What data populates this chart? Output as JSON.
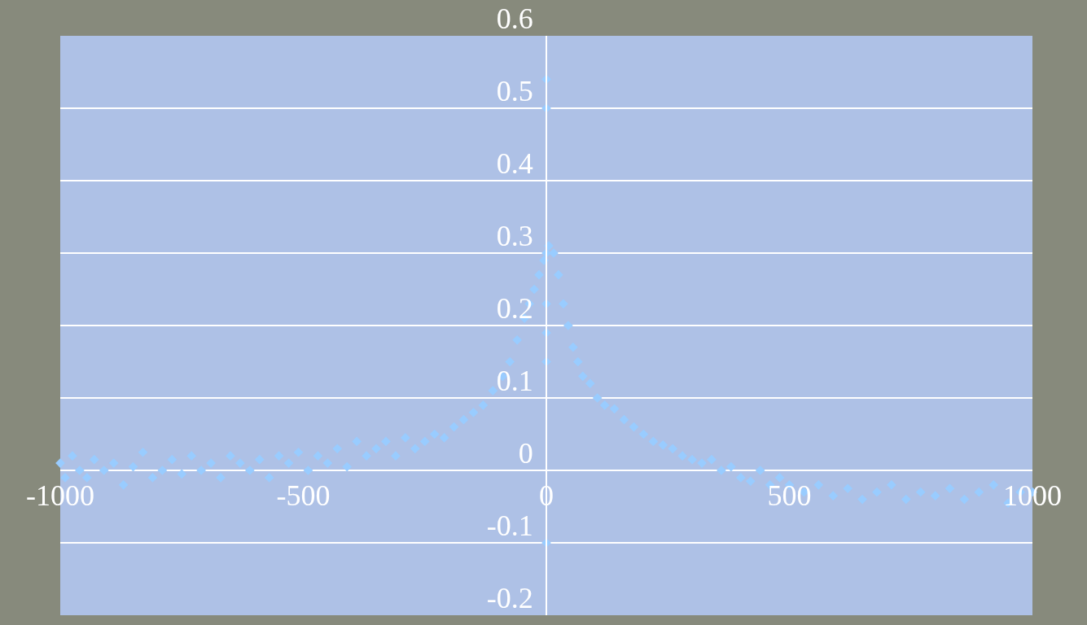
{
  "chart_data": {
    "type": "scatter",
    "marker": "diamond",
    "grid": "y",
    "legend": false,
    "xlim": [
      -1000,
      1000
    ],
    "xticks": [
      -1000,
      -500,
      0,
      500,
      1000
    ],
    "ylim": [
      -0.2,
      0.6
    ],
    "yticks": [
      -0.2,
      -0.1,
      0,
      0.1,
      0.2,
      0.3,
      0.4,
      0.5,
      0.6
    ],
    "series": [
      {
        "color": "#99ccff",
        "x": [
          -1000,
          -990,
          -975,
          -960,
          -945,
          -930,
          -910,
          -890,
          -870,
          -850,
          -830,
          -810,
          -790,
          -770,
          -750,
          -730,
          -710,
          -690,
          -670,
          -650,
          -630,
          -610,
          -590,
          -570,
          -550,
          -530,
          -510,
          -490,
          -470,
          -450,
          -430,
          -410,
          -390,
          -370,
          -350,
          -330,
          -310,
          -290,
          -270,
          -250,
          -230,
          -210,
          -190,
          -170,
          -150,
          -130,
          -110,
          -90,
          -75,
          -60,
          -45,
          -35,
          -25,
          -15,
          -5,
          0,
          0,
          0,
          0,
          0,
          0,
          0,
          5,
          15,
          25,
          35,
          45,
          55,
          65,
          75,
          90,
          105,
          120,
          140,
          160,
          180,
          200,
          220,
          240,
          260,
          280,
          300,
          320,
          340,
          360,
          380,
          400,
          420,
          440,
          460,
          480,
          500,
          530,
          560,
          590,
          620,
          650,
          680,
          710,
          740,
          770,
          800,
          830,
          860,
          890,
          920,
          950,
          975,
          1000
        ],
        "values": [
          0.01,
          -0.01,
          0.02,
          0.0,
          -0.01,
          0.015,
          0.0,
          0.01,
          -0.02,
          0.005,
          0.025,
          -0.01,
          0.0,
          0.015,
          -0.005,
          0.02,
          0.0,
          0.01,
          -0.01,
          0.02,
          0.01,
          0.0,
          0.015,
          -0.01,
          0.02,
          0.01,
          0.025,
          0.0,
          0.02,
          0.01,
          0.03,
          0.005,
          0.04,
          0.02,
          0.03,
          0.04,
          0.02,
          0.045,
          0.03,
          0.04,
          0.05,
          0.045,
          0.06,
          0.07,
          0.08,
          0.09,
          0.11,
          0.13,
          0.15,
          0.18,
          0.21,
          0.23,
          0.25,
          0.27,
          0.29,
          0.54,
          0.5,
          0.3,
          0.23,
          0.19,
          0.15,
          -0.1,
          0.31,
          0.3,
          0.27,
          0.23,
          0.2,
          0.17,
          0.15,
          0.13,
          0.12,
          0.1,
          0.09,
          0.085,
          0.07,
          0.06,
          0.05,
          0.04,
          0.035,
          0.03,
          0.02,
          0.015,
          0.01,
          0.015,
          0.0,
          0.005,
          -0.01,
          -0.015,
          0.0,
          -0.02,
          -0.01,
          -0.02,
          -0.03,
          -0.02,
          -0.035,
          -0.025,
          -0.04,
          -0.03,
          -0.02,
          -0.04,
          -0.03,
          -0.035,
          -0.025,
          -0.04,
          -0.03,
          -0.02,
          -0.045,
          -0.03,
          -0.03
        ]
      }
    ]
  }
}
